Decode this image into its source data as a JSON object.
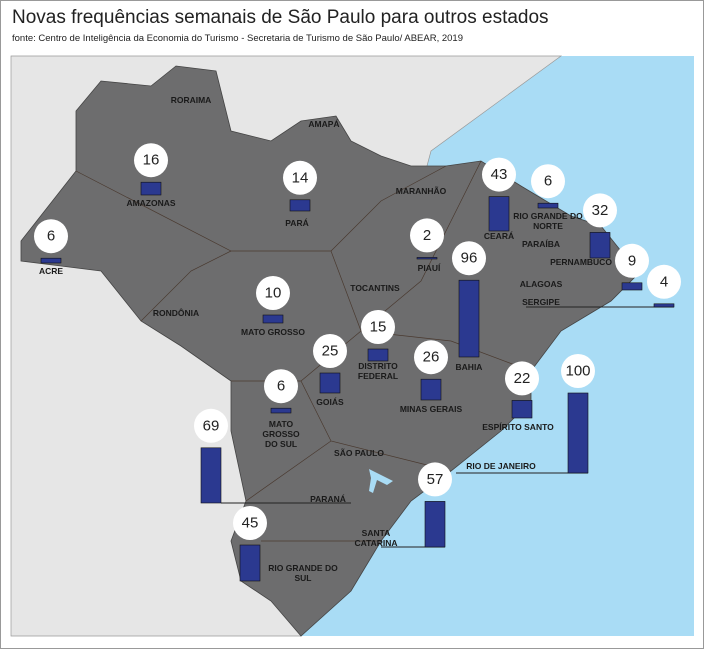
{
  "title": "Novas frequências semanais de São Paulo para outros estados",
  "subtitle": "fonte: Centro de Inteligência da Economia do Turismo - Secretaria de Turismo de São Paulo/ ABEAR, 2019",
  "states": [
    {
      "label": "AMAZONAS",
      "value": 16
    },
    {
      "label": "ACRE",
      "value": 6
    },
    {
      "label": "PARÁ",
      "value": 14
    },
    {
      "label": "CEARÁ",
      "value": 43
    },
    {
      "label": "RIO GRANDE DO NORTE",
      "value": 6
    },
    {
      "label": "PERNAMBUCO",
      "value": 32
    },
    {
      "label": "ALAGOAS",
      "value": 9
    },
    {
      "label": "SERGIPE",
      "value": 4
    },
    {
      "label": "PIAUÍ",
      "value": 2
    },
    {
      "label": "BAHIA",
      "value": 96
    },
    {
      "label": "MATO GROSSO",
      "value": 10
    },
    {
      "label": "DISTRITO FEDERAL",
      "value": 15
    },
    {
      "label": "GOIÁS",
      "value": 25
    },
    {
      "label": "MINAS GERAIS",
      "value": 26
    },
    {
      "label": "MATO GROSSO DO SUL",
      "value": 6
    },
    {
      "label": "ESPÍRITO SANTO",
      "value": 22
    },
    {
      "label": "RIO DE JANEIRO",
      "value": 100
    },
    {
      "label": "PARANÁ",
      "value": 69
    },
    {
      "label": "SANTA CATARINA",
      "value": 57
    },
    {
      "label": "RIO GRANDE DO SUL",
      "value": 45
    }
  ],
  "other_labels": [
    "RORAIMA",
    "AMAPÁ",
    "MARANHÃO",
    "RONDÔNIA",
    "TOCANTINS",
    "SÃO PAULO",
    "PARAÍBA"
  ]
}
